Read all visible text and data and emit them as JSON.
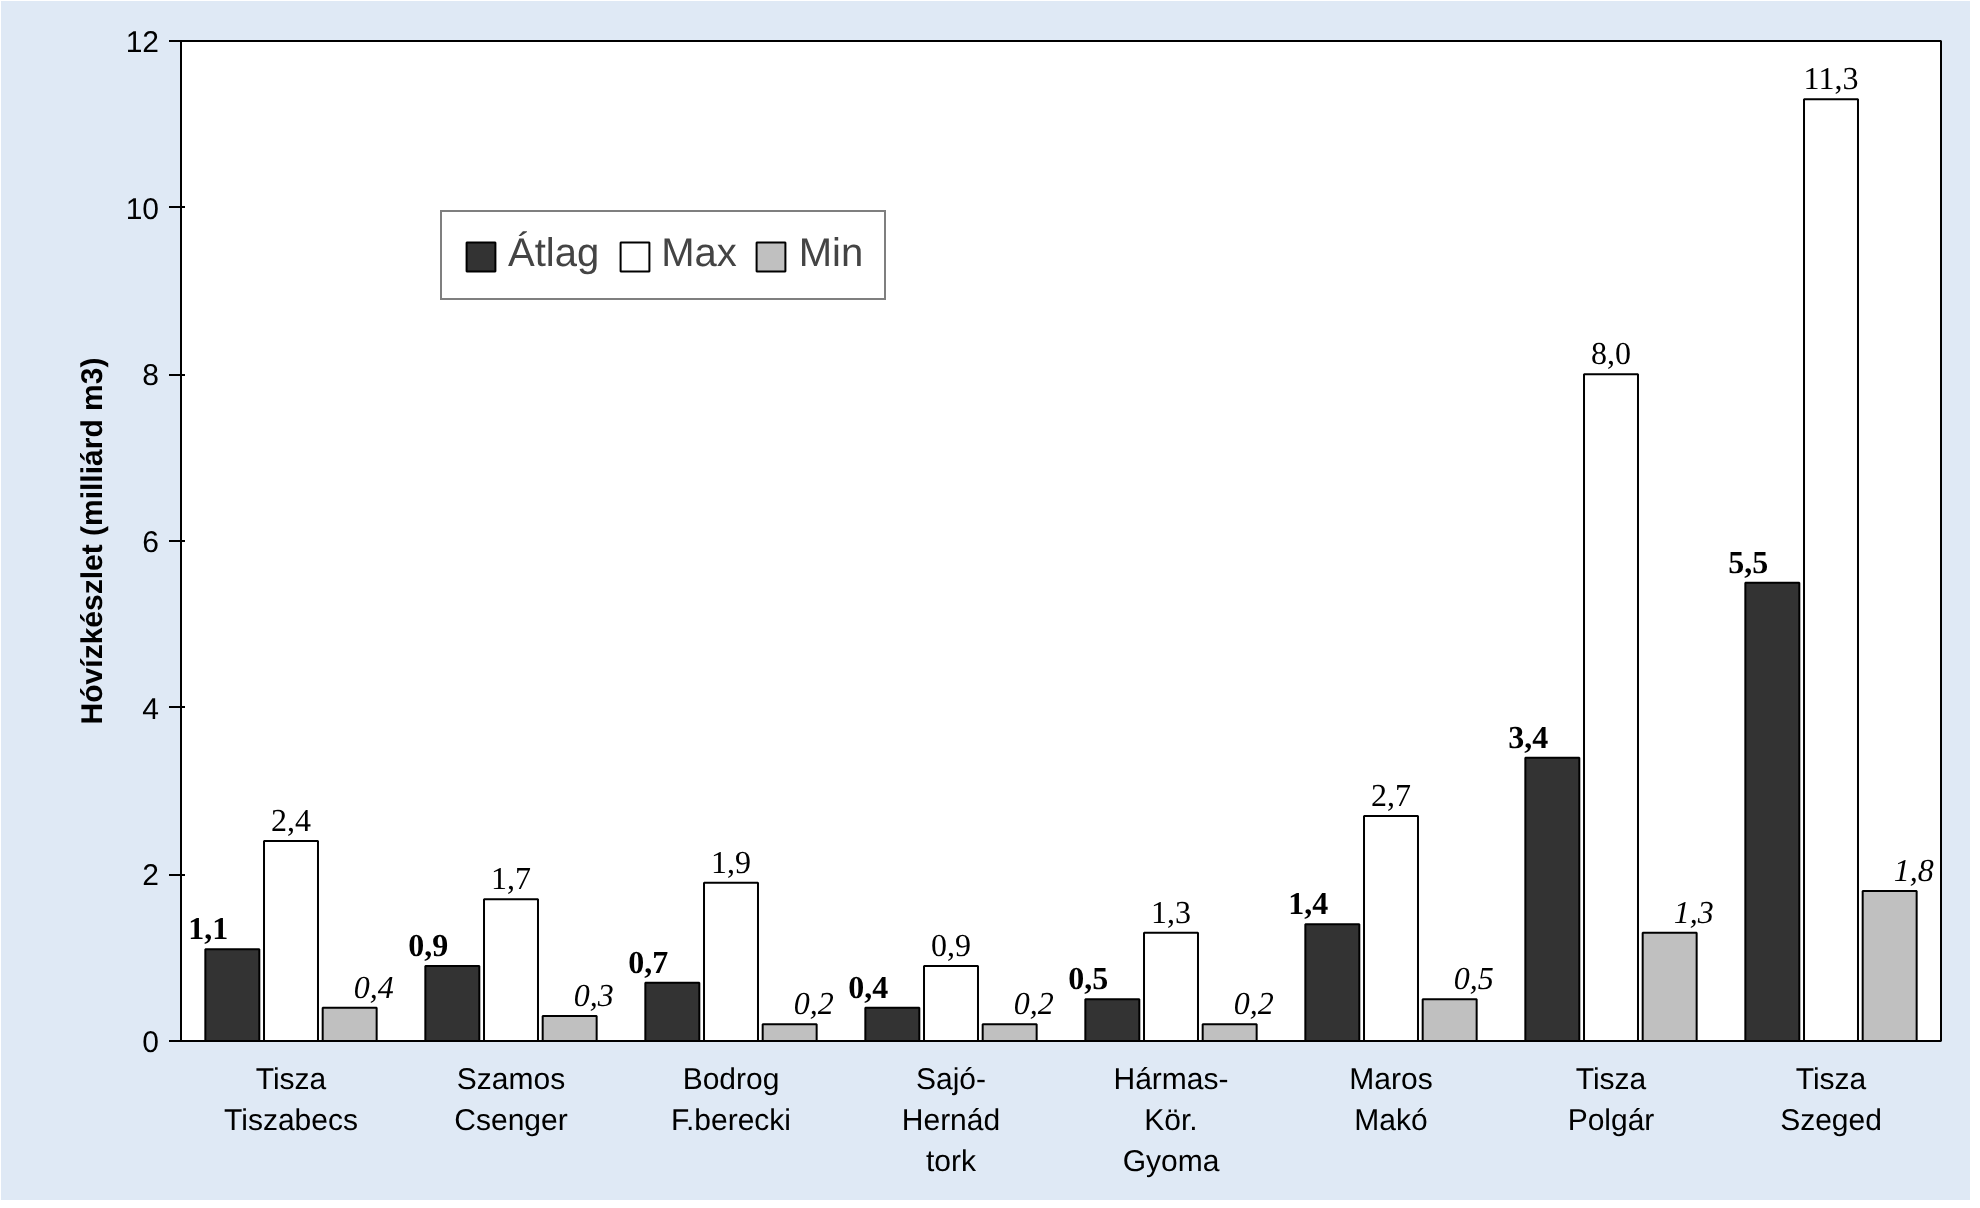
{
  "chart_data": {
    "type": "bar",
    "ylabel": "Hóvízkészlet (milliárd m3)",
    "categories": [
      "Tisza\nTiszabecs",
      "Szamos\nCsenger",
      "Bodrog\nF.berecki",
      "Sajó-\nHernád\ntork",
      "Hármas-\nKör.\nGyoma",
      "Maros\nMakó",
      "Tisza\nPolgár",
      "Tisza\nSzeged"
    ],
    "series": [
      {
        "name": "Átlag",
        "color": "#333333",
        "values": [
          1.1,
          0.9,
          0.7,
          0.4,
          0.5,
          1.4,
          3.4,
          5.5
        ],
        "value_labels": [
          "1,1",
          "0,9",
          "0,7",
          "0,4",
          "0,5",
          "1,4",
          "3,4",
          "5,5"
        ]
      },
      {
        "name": "Max",
        "color": "#ffffff",
        "values": [
          2.4,
          1.7,
          1.9,
          0.9,
          1.3,
          2.7,
          8.0,
          11.3
        ],
        "value_labels": [
          "2,4",
          "1,7",
          "1,9",
          "0,9",
          "1,3",
          "2,7",
          "8,0",
          "11,3"
        ]
      },
      {
        "name": "Min",
        "color": "#c0c0c0",
        "values": [
          0.4,
          0.3,
          0.2,
          0.2,
          0.2,
          0.5,
          1.3,
          1.8
        ],
        "value_labels": [
          "0,4",
          "0,3",
          "0,2",
          "0,2",
          "0,2",
          "0,5",
          "1,3",
          "1,8"
        ]
      }
    ],
    "ylim": [
      0,
      12
    ],
    "yticks": [
      0,
      2,
      4,
      6,
      8,
      10,
      12
    ],
    "grid": false,
    "legend": "top left"
  }
}
